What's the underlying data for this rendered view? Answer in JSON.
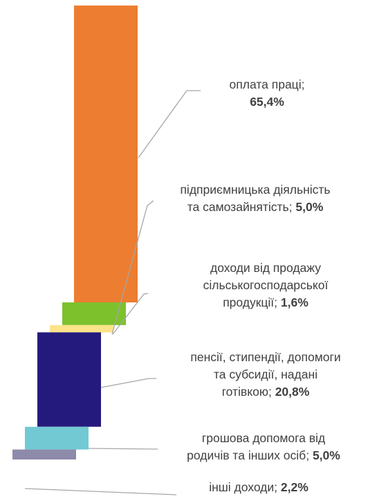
{
  "chart_data": {
    "type": "bar",
    "title": "",
    "series": [
      {
        "category": "оплата праці",
        "label_lines": [
          "оплата праці;"
        ],
        "value": 65.4,
        "value_text": "65,4%",
        "value_own_line": true,
        "color": "#ED7D31"
      },
      {
        "category": "підприємницька діяльність та самозайнятість",
        "label_lines": [
          "підприємницька діяльність",
          "та самозайнятість;"
        ],
        "value": 5.0,
        "value_text": "5,0%",
        "value_own_line": false,
        "color": "#7DC12D"
      },
      {
        "category": "доходи від продажу сільськогосподарської продукції",
        "label_lines": [
          "доходи від продажу",
          "сільськогосподарської",
          "продукції;"
        ],
        "value": 1.6,
        "value_text": "1,6%",
        "value_own_line": false,
        "color": "#FCE38A"
      },
      {
        "category": "пенсії, стипендії, допомоги та субсидії, надані готівкою",
        "label_lines": [
          "пенсії, стипендії, допомоги",
          "та субсидії, надані",
          "готівкою;"
        ],
        "value": 20.8,
        "value_text": "20,8%",
        "value_own_line": false,
        "color": "#241A7D"
      },
      {
        "category": "грошова допомога від родичів та інших осіб",
        "label_lines": [
          "грошова допомога від",
          "родичів та інших осіб;"
        ],
        "value": 5.0,
        "value_text": "5,0%",
        "value_own_line": false,
        "color": "#73C9D3"
      },
      {
        "category": "інші доходи",
        "label_lines": [
          "інші доходи;"
        ],
        "value": 2.2,
        "value_text": "2,2%",
        "value_own_line": false,
        "color": "#8E8AAA"
      }
    ]
  }
}
